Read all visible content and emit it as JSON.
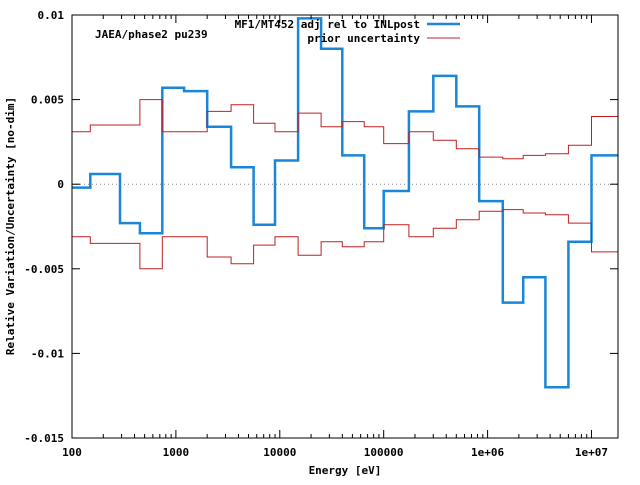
{
  "chart_data": {
    "type": "line",
    "xscale": "log",
    "xlim": [
      100,
      18000000
    ],
    "ylim": [
      -0.015,
      0.01
    ],
    "xlabel": "Energy [eV]",
    "ylabel": "Relative Variation/Uncertainty [no-dim]",
    "annotation": "JAEA/phase2 pu239",
    "legend_position": "top-right",
    "colors": {
      "adj": "#1a86d8",
      "unc": "#c02020"
    },
    "x_ticks": [
      {
        "value": 100,
        "label": "100"
      },
      {
        "value": 1000,
        "label": "1000"
      },
      {
        "value": 10000,
        "label": "10000"
      },
      {
        "value": 100000,
        "label": "100000"
      },
      {
        "value": 1000000,
        "label": "1e+06"
      },
      {
        "value": 10000000,
        "label": "1e+07"
      }
    ],
    "y_ticks": [
      {
        "value": 0.01,
        "label": "0.01"
      },
      {
        "value": 0.005,
        "label": "0.005"
      },
      {
        "value": 0,
        "label": "0"
      },
      {
        "value": -0.005,
        "label": "-0.005"
      },
      {
        "value": -0.01,
        "label": "-0.01"
      },
      {
        "value": -0.015,
        "label": "-0.015"
      }
    ],
    "edges": [
      100,
      150,
      290,
      450,
      740,
      1200,
      2000,
      3400,
      5600,
      9000,
      15000,
      25000,
      40000,
      65000,
      100000,
      175000,
      300000,
      500000,
      830000,
      1400000,
      2200000,
      3600000,
      6000000,
      10000000,
      18000000
    ],
    "series": [
      {
        "name": "MF1/MT452 adj rel to INLpost",
        "style": "adj",
        "values": [
          -0.0002,
          0.0006,
          -0.0023,
          -0.0029,
          0.0057,
          0.0055,
          0.0034,
          0.001,
          -0.0024,
          0.0014,
          0.0098,
          0.008,
          0.0017,
          -0.0026,
          -0.0004,
          0.0043,
          0.0064,
          0.0046,
          -0.001,
          -0.007,
          -0.0055,
          -0.012,
          -0.0034,
          0.0017
        ]
      },
      {
        "name": "prior uncertainty",
        "style": "unc",
        "values": [
          0.0031,
          0.0035,
          0.0035,
          0.005,
          0.0031,
          0.0031,
          0.0043,
          0.0047,
          0.0036,
          0.0031,
          0.0042,
          0.0034,
          0.0037,
          0.0034,
          0.0024,
          0.0031,
          0.0026,
          0.0021,
          0.0016,
          0.0015,
          0.0017,
          0.0018,
          0.0023,
          0.004
        ]
      },
      {
        "name": "",
        "style": "unc",
        "values": [
          -0.0031,
          -0.0035,
          -0.0035,
          -0.005,
          -0.0031,
          -0.0031,
          -0.0043,
          -0.0047,
          -0.0036,
          -0.0031,
          -0.0042,
          -0.0034,
          -0.0037,
          -0.0034,
          -0.0024,
          -0.0031,
          -0.0026,
          -0.0021,
          -0.0016,
          -0.0015,
          -0.0017,
          -0.0018,
          -0.0023,
          -0.004
        ]
      }
    ]
  }
}
